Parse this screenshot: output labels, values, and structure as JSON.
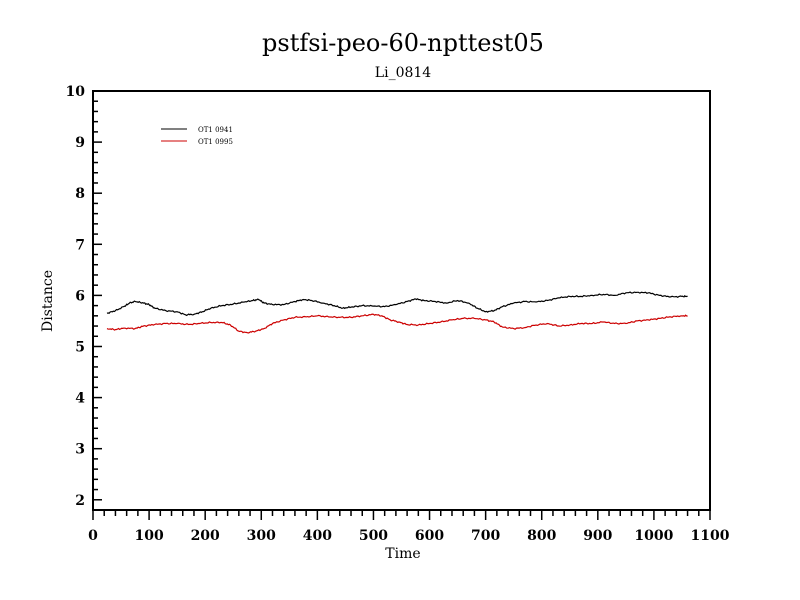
{
  "chart_data": {
    "type": "line",
    "title": "pstfsi-peo-60-npttest05",
    "subtitle": "Li_0814",
    "xlabel": "Time",
    "ylabel": "Distance",
    "xlim": [
      0,
      1100
    ],
    "ylim": [
      1.8,
      10
    ],
    "x_ticks": [
      0,
      100,
      200,
      300,
      400,
      500,
      600,
      700,
      800,
      900,
      1000,
      1100
    ],
    "y_ticks": [
      2,
      3,
      4,
      5,
      6,
      7,
      8,
      9,
      10
    ],
    "legend_position": "top-left",
    "grid": false,
    "series": [
      {
        "name": "OT1 0941",
        "color": "#000000",
        "x": [
          25,
          40,
          55,
          65,
          75,
          90,
          100,
          110,
          130,
          150,
          165,
          180,
          195,
          210,
          230,
          250,
          270,
          285,
          295,
          305,
          320,
          340,
          360,
          375,
          390,
          410,
          430,
          445,
          460,
          480,
          500,
          520,
          540,
          560,
          575,
          590,
          610,
          630,
          650,
          670,
          685,
          700,
          715,
          730,
          750,
          770,
          790,
          810,
          830,
          850,
          870,
          890,
          910,
          930,
          950,
          970,
          990,
          1010,
          1030,
          1050,
          1060
        ],
        "values": [
          5.65,
          5.7,
          5.78,
          5.85,
          5.88,
          5.85,
          5.82,
          5.75,
          5.7,
          5.68,
          5.62,
          5.63,
          5.68,
          5.75,
          5.8,
          5.83,
          5.87,
          5.9,
          5.92,
          5.85,
          5.82,
          5.82,
          5.88,
          5.92,
          5.9,
          5.85,
          5.8,
          5.75,
          5.77,
          5.8,
          5.79,
          5.78,
          5.82,
          5.88,
          5.93,
          5.9,
          5.88,
          5.85,
          5.9,
          5.85,
          5.75,
          5.68,
          5.7,
          5.78,
          5.85,
          5.88,
          5.87,
          5.9,
          5.95,
          5.98,
          5.98,
          6.0,
          6.02,
          6.0,
          6.05,
          6.06,
          6.05,
          6.0,
          5.97,
          5.98,
          5.98
        ]
      },
      {
        "name": "OT1 0995",
        "color": "#cc0000",
        "x": [
          25,
          40,
          55,
          75,
          90,
          110,
          130,
          150,
          170,
          190,
          210,
          230,
          245,
          260,
          275,
          290,
          305,
          320,
          340,
          360,
          380,
          400,
          420,
          440,
          460,
          480,
          500,
          515,
          530,
          545,
          560,
          580,
          600,
          620,
          640,
          660,
          680,
          700,
          715,
          730,
          750,
          770,
          790,
          810,
          830,
          850,
          870,
          890,
          910,
          930,
          950,
          970,
          990,
          1010,
          1030,
          1050,
          1060
        ],
        "values": [
          5.35,
          5.33,
          5.36,
          5.35,
          5.4,
          5.43,
          5.45,
          5.45,
          5.43,
          5.45,
          5.47,
          5.47,
          5.42,
          5.3,
          5.27,
          5.3,
          5.35,
          5.45,
          5.52,
          5.57,
          5.58,
          5.6,
          5.58,
          5.57,
          5.57,
          5.6,
          5.63,
          5.6,
          5.52,
          5.48,
          5.43,
          5.42,
          5.45,
          5.48,
          5.52,
          5.55,
          5.55,
          5.52,
          5.48,
          5.38,
          5.35,
          5.37,
          5.42,
          5.45,
          5.4,
          5.42,
          5.45,
          5.45,
          5.48,
          5.45,
          5.45,
          5.5,
          5.52,
          5.55,
          5.58,
          5.6,
          5.6
        ]
      }
    ]
  }
}
